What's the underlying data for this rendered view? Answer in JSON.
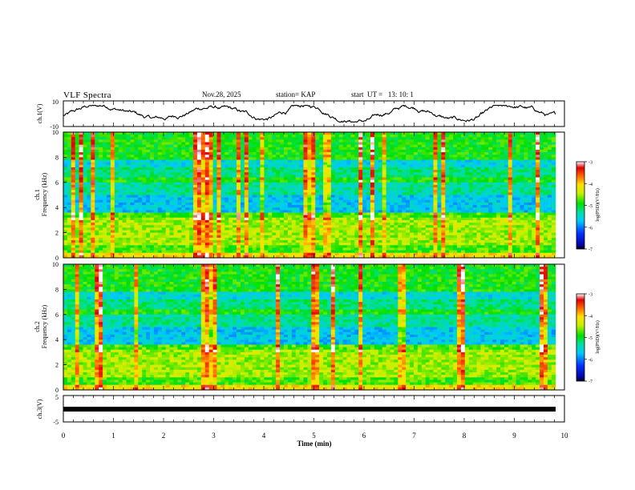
{
  "header": {
    "title": "VLF Spectra",
    "date": "Nov.28, 2025",
    "station": "station= KAP",
    "start": "start  UT =   13: 10: 1"
  },
  "chart_data": [
    {
      "type": "line",
      "panel": "ch1-waveform",
      "ylabel": "ch.1(V)",
      "ylim": [
        -10,
        10
      ],
      "yticks": [
        "10",
        "-10"
      ],
      "x_range_min": [
        0,
        9.82
      ],
      "series_description": "continuous voltage trace oscillating roughly between -6 and +6 V"
    },
    {
      "type": "heatmap",
      "panel": "ch1-spectrogram",
      "ylabel": "ch.1\nFrequency (kHz)",
      "ylim": [
        0,
        10
      ],
      "yticks": [
        "0",
        "2",
        "4",
        "6",
        "8",
        "10"
      ],
      "x_range_min": [
        0,
        9.82
      ],
      "colorbar": {
        "label": "log(PSD)(V²/Hz)",
        "range": [
          -7,
          -3
        ],
        "ticks": [
          "-3",
          "-4",
          "-5",
          "-6",
          "-7"
        ]
      }
    },
    {
      "type": "heatmap",
      "panel": "ch2-spectrogram",
      "ylabel": "ch.2\nFrequency (kHz)",
      "ylim": [
        0,
        10
      ],
      "yticks": [
        "0",
        "2",
        "4",
        "6",
        "8",
        "10"
      ],
      "x_range_min": [
        0,
        9.82
      ],
      "colorbar": {
        "label": "log(PSD)(V²/Hz)",
        "range": [
          -7,
          -3
        ],
        "ticks": [
          "-3",
          "-4",
          "-5",
          "-6",
          "-7"
        ]
      }
    },
    {
      "type": "line",
      "panel": "ch3-waveform",
      "ylabel": "ch.3(V)",
      "ylim": [
        -5,
        5
      ],
      "yticks": [
        "5",
        "-5"
      ],
      "x_range_min": [
        0,
        9.82
      ],
      "series_description": "constant level near -1 V (thick black band)"
    }
  ],
  "xaxis": {
    "label": "Time (min)",
    "ticks": [
      "0",
      "1",
      "2",
      "3",
      "4",
      "5",
      "6",
      "7",
      "8",
      "9",
      "10"
    ],
    "range": [
      0,
      10
    ]
  },
  "labels": {
    "ch1": "ch.1(V)",
    "ch1_freq_a": "ch.1",
    "ch1_freq_b": "Frequency (kHz)",
    "ch2_freq_a": "ch.2",
    "ch2_freq_b": "Frequency (kHz)",
    "ch3": "ch.3(V)",
    "colorbar": "log(PSD)(V²/Hz)"
  }
}
